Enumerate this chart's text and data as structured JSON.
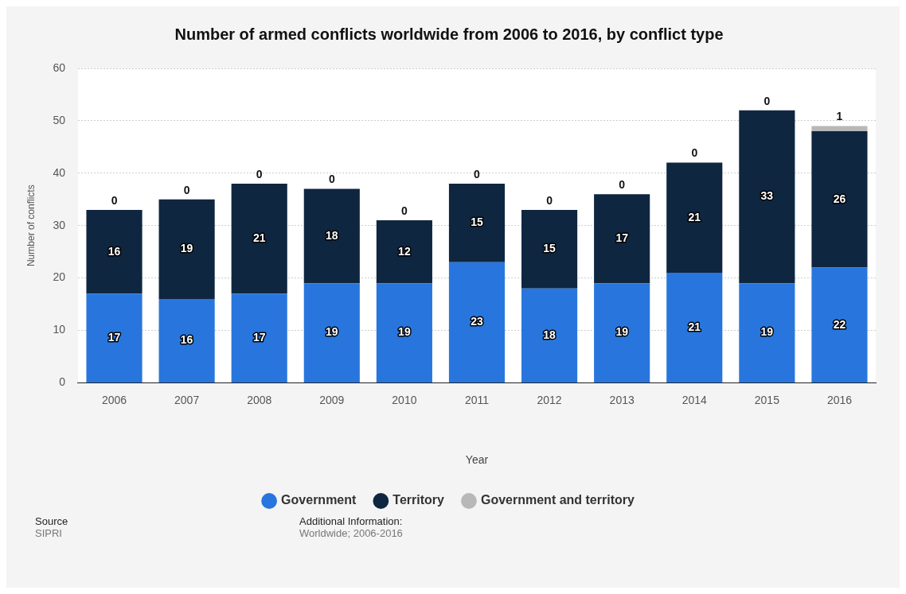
{
  "chart_data": {
    "type": "bar",
    "title": "Number of armed conflicts worldwide from 2006 to 2016, by conflict type",
    "xlabel": "Year",
    "ylabel": "Number of conflicts",
    "categories": [
      "2006",
      "2007",
      "2008",
      "2009",
      "2010",
      "2011",
      "2012",
      "2013",
      "2014",
      "2015",
      "2016"
    ],
    "series": [
      {
        "name": "Government",
        "color": "#2876dd",
        "values": [
          17,
          16,
          17,
          19,
          19,
          23,
          18,
          19,
          21,
          19,
          22
        ]
      },
      {
        "name": "Territory",
        "color": "#0f2640",
        "values": [
          16,
          19,
          21,
          18,
          12,
          15,
          15,
          17,
          21,
          33,
          26
        ]
      },
      {
        "name": "Government and territory",
        "color": "#b8b8b8",
        "values": [
          0,
          0,
          0,
          0,
          0,
          0,
          0,
          0,
          0,
          0,
          1
        ]
      }
    ],
    "stacked": true,
    "ylim": [
      0,
      60
    ],
    "yticks": [
      0,
      10,
      20,
      30,
      40,
      50,
      60
    ],
    "grid": "y",
    "legend": "bottom",
    "data_labels": true,
    "annotations": [
      "Source",
      "SIPRI",
      "Additional Information:",
      "Worldwide; 2006-2016"
    ]
  }
}
